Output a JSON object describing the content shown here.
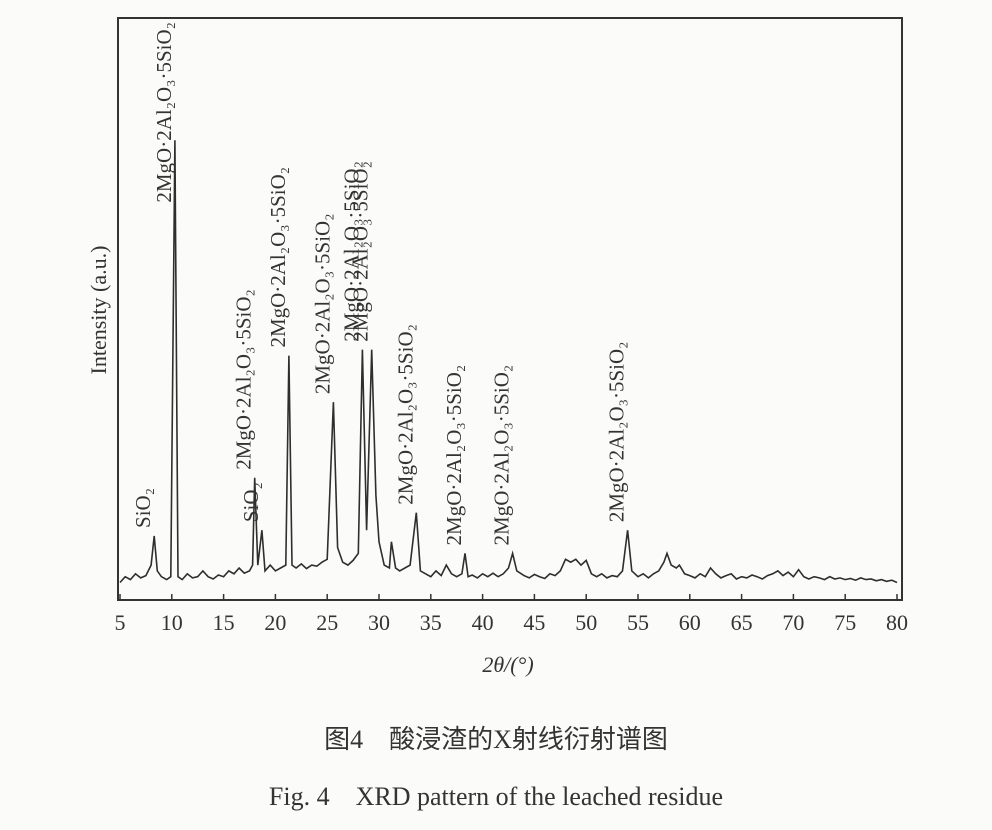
{
  "chart_data": {
    "type": "line",
    "x": [
      5,
      5.5,
      6,
      6.5,
      7,
      7.5,
      8,
      8.3,
      8.6,
      9,
      9.5,
      9.9,
      10.3,
      10.6,
      11,
      11.5,
      12,
      12.5,
      13,
      13.5,
      14,
      14.5,
      15,
      15.5,
      16,
      16.5,
      17,
      17.5,
      17.8,
      18,
      18.3,
      18.7,
      19,
      19.5,
      20,
      20.5,
      21,
      21.3,
      21.6,
      22,
      22.5,
      23,
      23.5,
      24,
      24.5,
      25,
      25.6,
      26,
      26.5,
      27,
      27.5,
      28,
      28.4,
      28.8,
      29.3,
      29.7,
      30,
      30.5,
      31,
      31.2,
      31.6,
      32,
      32.5,
      33,
      33.6,
      34,
      34.5,
      35,
      35.5,
      36,
      36.5,
      37,
      37.5,
      38,
      38.3,
      38.6,
      39,
      39.5,
      40,
      40.5,
      41,
      41.5,
      42,
      42.5,
      42.9,
      43.3,
      44,
      44.5,
      45,
      45.5,
      46,
      46.5,
      47,
      47.5,
      48,
      48.5,
      49,
      49.5,
      50,
      50.5,
      51,
      51.5,
      52,
      52.5,
      53,
      53.5,
      54,
      54.4,
      55,
      55.5,
      56,
      56.5,
      57,
      57.5,
      57.8,
      58.2,
      58.7,
      59,
      59.5,
      60,
      60.5,
      61,
      61.5,
      62,
      62.5,
      63,
      63.5,
      64,
      64.5,
      65,
      65.5,
      66,
      66.5,
      67,
      67.5,
      68,
      68.5,
      69,
      69.5,
      70,
      70.5,
      71,
      71.5,
      72,
      72.5,
      73,
      73.5,
      74,
      74.5,
      75,
      75.5,
      76,
      76.5,
      77,
      77.5,
      78,
      78.5,
      79,
      79.5,
      80
    ],
    "values": [
      3,
      4,
      3.5,
      4.5,
      3.8,
      4.2,
      6,
      11,
      5,
      4,
      3.5,
      4,
      79,
      4,
      3.5,
      4.5,
      3.8,
      4,
      5,
      4,
      3.6,
      4.3,
      4,
      5,
      4.5,
      5.5,
      4.6,
      5,
      6,
      21,
      6,
      12,
      5,
      6,
      5,
      5.5,
      6,
      42,
      6,
      5.5,
      6.2,
      5.4,
      6,
      5.8,
      6.5,
      7,
      34,
      9,
      6.5,
      6,
      6.8,
      8,
      43,
      12,
      43,
      18,
      10,
      6,
      5.5,
      10,
      5.5,
      5,
      5.5,
      6,
      15,
      5,
      4.5,
      4,
      5,
      4.2,
      6,
      4.5,
      4,
      4.5,
      8,
      4,
      4.3,
      3.8,
      4.5,
      4,
      4.6,
      4,
      4.5,
      5.5,
      8,
      5,
      4.2,
      3.8,
      4.4,
      4,
      3.7,
      4.5,
      4.2,
      5,
      7,
      6.5,
      7,
      6,
      6.8,
      4.5,
      4,
      4.5,
      3.8,
      4.2,
      4,
      5,
      12,
      5,
      4,
      4.5,
      3.8,
      4.5,
      5,
      6.5,
      8,
      6,
      5.5,
      6,
      4.5,
      4.2,
      3.8,
      4.5,
      4,
      5.5,
      4.5,
      3.8,
      4.2,
      4.5,
      3.6,
      4,
      3.8,
      4.3,
      4,
      3.6,
      4.2,
      4.5,
      5,
      4.2,
      4.8,
      4,
      5.2,
      4,
      3.6,
      4,
      3.8,
      3.5,
      4,
      3.6,
      3.8,
      3.5,
      3.7,
      3.4,
      3.8,
      3.5,
      3.6,
      3.3,
      3.5,
      3.2,
      3.4,
      3
    ],
    "color": "#2e2e2e",
    "xlim": [
      5,
      80
    ],
    "xticks": [
      5,
      10,
      15,
      20,
      25,
      30,
      35,
      40,
      45,
      50,
      55,
      60,
      65,
      70,
      75,
      80
    ],
    "ylim": [
      0,
      100
    ],
    "xlabel": "2θ/(°)",
    "ylabel": "Intensity (a.u.)",
    "annotations": [
      {
        "text": "SiO₂",
        "x": 8.3
      },
      {
        "text": "2MgO·2Al₂O₃·5SiO₂",
        "x": 10.3
      },
      {
        "text": "2MgO·2Al₂O₃·5SiO₂",
        "x": 18.0
      },
      {
        "text": "SiO₂",
        "x": 18.7
      },
      {
        "text": "2MgO·2Al₂O₃·5SiO₂",
        "x": 21.3
      },
      {
        "text": "2MgO·2Al₂O₃·5SiO₂",
        "x": 25.6
      },
      {
        "text": "2MgO·2Al₂O₃·5SiO₂",
        "x": 28.4
      },
      {
        "text": "2MgO·2Al₂O₃·5SiO₂",
        "x": 29.3
      },
      {
        "text": "2MgO·2Al₂O₃·5SiO₂",
        "x": 33.6
      },
      {
        "text": "2MgO·2Al₂O₃·5SiO₂",
        "x": 38.3
      },
      {
        "text": "2MgO·2Al₂O₃·5SiO₂",
        "x": 42.9
      },
      {
        "text": "2MgO·2Al₂O₃·5SiO₂",
        "x": 54.0
      }
    ],
    "caption_cn": "图4　酸浸渣的X射线衍射谱图",
    "caption_en": "Fig. 4　XRD pattern of the leached residue"
  }
}
